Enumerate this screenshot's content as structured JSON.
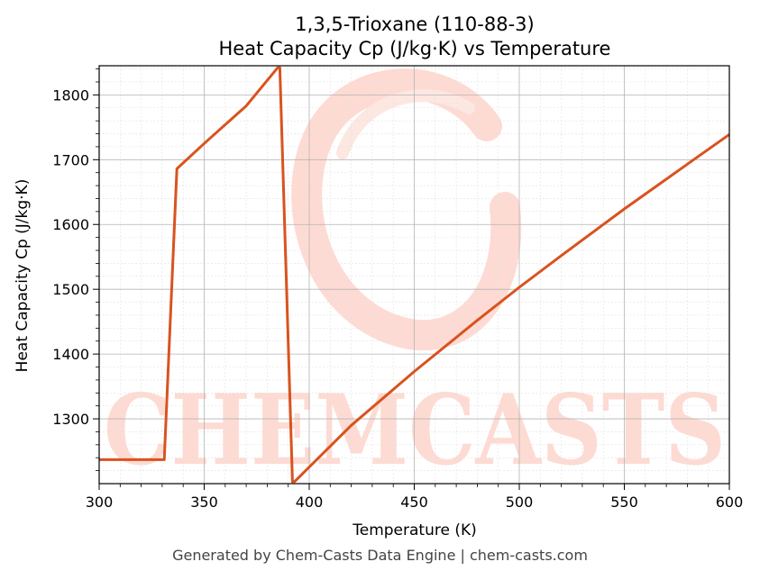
{
  "chart_data": {
    "type": "line",
    "title_line1": "1,3,5-Trioxane (110-88-3)",
    "title_line2": "Heat Capacity Cp (J/kg·K) vs Temperature",
    "xlabel": "Temperature (K)",
    "ylabel": "Heat Capacity Cp (J/kg·K)",
    "xlim": [
      300,
      600
    ],
    "ylim": [
      1200,
      1845
    ],
    "x_ticks": [
      300,
      350,
      400,
      450,
      500,
      550,
      600
    ],
    "y_ticks": [
      1300,
      1400,
      1500,
      1600,
      1700,
      1800
    ],
    "grid": true,
    "series": [
      {
        "color": "#d9531e",
        "x": [
          300,
          331,
          337,
          350,
          370,
          385,
          386,
          392,
          393,
          420,
          450,
          480,
          500,
          520,
          550,
          580,
          600
        ],
        "y": [
          1237,
          1237,
          1686,
          1725,
          1783,
          1842,
          1842,
          1203,
          1203,
          1290,
          1373,
          1452,
          1503,
          1552,
          1624,
          1693,
          1739
        ]
      }
    ]
  },
  "watermark": {
    "text": "CHEMCASTS",
    "color": "#fdd5cc"
  },
  "footer": {
    "text": "Generated by Chem-Casts Data Engine | chem-casts.com"
  }
}
